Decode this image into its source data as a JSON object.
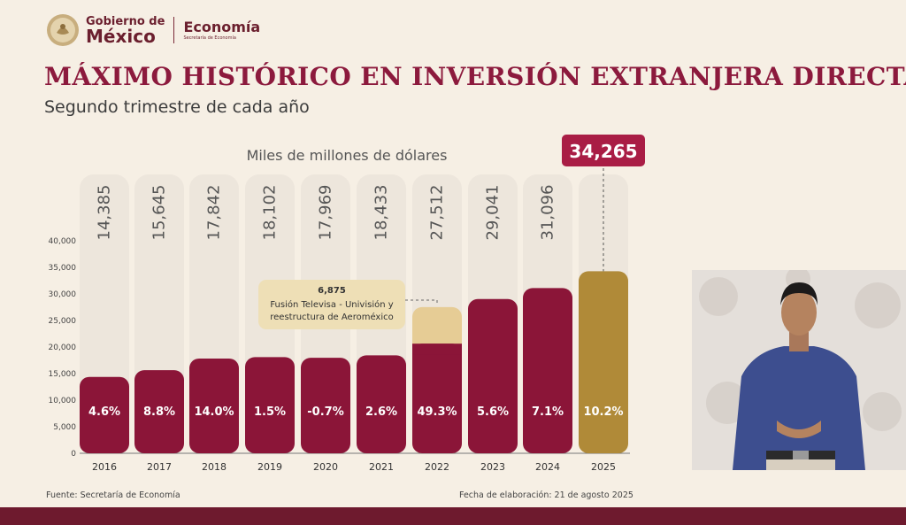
{
  "header": {
    "gobierno_line1": "Gobierno de",
    "gobierno_line2": "México",
    "dependencia": "Economía",
    "dependencia_sub": "Secretaría de Economía"
  },
  "title": "MÁXIMO HISTÓRICO EN INVERSIÓN EXTRANJERA DIRECTA",
  "subtitle": "Segundo trimestre de cada año",
  "footer": {
    "source": "Fuente: Secretaría de Economía",
    "date": "Fecha de elaboración: 21 de agosto 2025"
  },
  "colors": {
    "bar": "#8b1538",
    "bar_highlight": "#b08a38",
    "bar_extra": "#e6cc95",
    "pill": "#ede6dc",
    "title": "#8c1a3d"
  },
  "chart_data": {
    "type": "bar",
    "ylabel": "Miles de millones de dólares",
    "ylim": [
      0,
      40000
    ],
    "yticks": [
      0,
      5000,
      10000,
      15000,
      20000,
      25000,
      30000,
      35000,
      40000
    ],
    "ytick_labels": [
      "0",
      "5,000",
      "10,000",
      "15,000",
      "20,000",
      "25,000",
      "30,000",
      "35,000",
      "40,000"
    ],
    "categories": [
      "2016",
      "2017",
      "2018",
      "2019",
      "2020",
      "2021",
      "2022",
      "2023",
      "2024",
      "2025"
    ],
    "values": [
      14385,
      15645,
      17842,
      18102,
      17969,
      18433,
      27512,
      29041,
      31096,
      34265
    ],
    "value_labels": [
      "14,385",
      "15,645",
      "17,842",
      "18,102",
      "17,969",
      "18,433",
      "27,512",
      "29,041",
      "31,096",
      "34,265"
    ],
    "growth_labels": [
      "4.6%",
      "8.8%",
      "14.0%",
      "1.5%",
      "-0.7%",
      "2.6%",
      "49.3%",
      "5.6%",
      "7.1%",
      "10.2%"
    ],
    "highlight_category": "2025",
    "segment_2022": {
      "extra_value": 6875,
      "extra_label": "6,875",
      "annotation_line1": "Fusión Televisa - Univisión y",
      "annotation_line2": "reestructura de Aeroméxico"
    }
  }
}
